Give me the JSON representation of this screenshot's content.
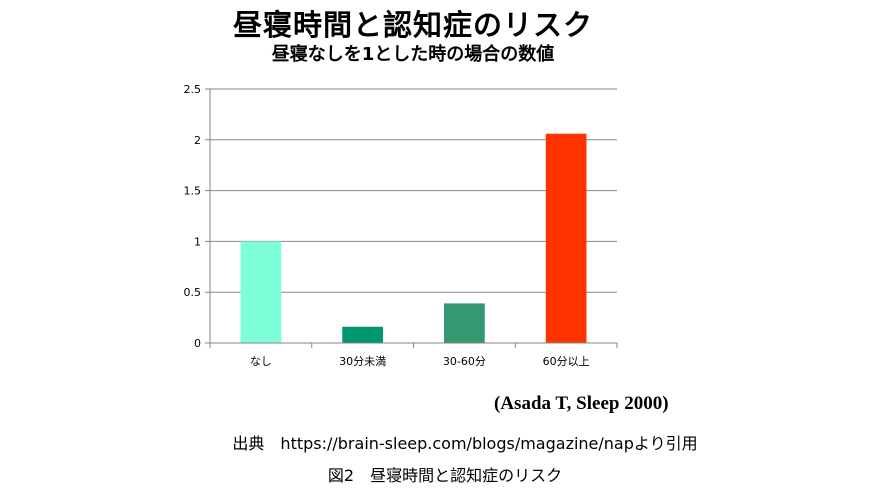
{
  "chart_data": {
    "type": "bar",
    "title": "昼寝時間と認知症のリスク",
    "subtitle": "昼寝なしを1とした時の場合の数値",
    "categories": [
      "なし",
      "30分未満",
      "30-60分",
      "60分以上"
    ],
    "values": [
      1.0,
      0.16,
      0.39,
      2.06
    ],
    "y_ticks": [
      "0",
      "0.5",
      "1",
      "1.5",
      "2",
      "2.5"
    ],
    "ylim": [
      0,
      2.5
    ],
    "grid": true,
    "legend": "none",
    "colors": [
      "#7fffd9",
      "#009670",
      "#339970",
      "#ff3300"
    ],
    "annotation": "(Asada T, Sleep 2000)"
  },
  "source": "出典　https://brain-sleep.com/blogs/magazine/napより引用",
  "figure_caption": "図2　昼寝時間と認知症のリスク"
}
